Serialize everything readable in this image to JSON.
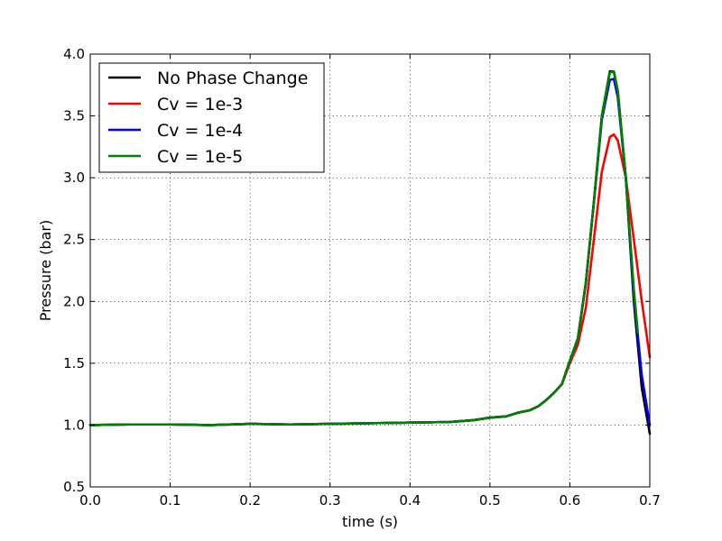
{
  "chart_data": {
    "type": "line",
    "title": "",
    "xlabel": "time (s)",
    "ylabel": "Pressure (bar)",
    "xlim": [
      0.0,
      0.7
    ],
    "ylim": [
      0.5,
      4.0
    ],
    "xticks": [
      "0.0",
      "0.1",
      "0.2",
      "0.3",
      "0.4",
      "0.5",
      "0.6",
      "0.7"
    ],
    "yticks": [
      "0.5",
      "1.0",
      "1.5",
      "2.0",
      "2.5",
      "3.0",
      "3.5",
      "4.0"
    ],
    "grid": true,
    "legend_position": "top-left",
    "series": [
      {
        "name": "No Phase Change",
        "color": "#000000",
        "x": [
          0.0,
          0.05,
          0.1,
          0.15,
          0.2,
          0.25,
          0.3,
          0.35,
          0.4,
          0.45,
          0.48,
          0.5,
          0.52,
          0.535,
          0.55,
          0.56,
          0.57,
          0.58,
          0.59,
          0.6,
          0.61,
          0.62,
          0.63,
          0.64,
          0.65,
          0.655,
          0.66,
          0.67,
          0.68,
          0.69,
          0.7
        ],
        "y": [
          1.0,
          1.005,
          1.005,
          1.0,
          1.01,
          1.005,
          1.01,
          1.015,
          1.02,
          1.025,
          1.04,
          1.06,
          1.07,
          1.1,
          1.12,
          1.15,
          1.2,
          1.26,
          1.33,
          1.52,
          1.7,
          2.15,
          2.8,
          3.5,
          3.86,
          3.86,
          3.7,
          3.0,
          2.0,
          1.3,
          0.93
        ]
      },
      {
        "name": "Cv = 1e-3",
        "color": "#ff0000",
        "x": [
          0.0,
          0.05,
          0.1,
          0.15,
          0.2,
          0.25,
          0.3,
          0.35,
          0.4,
          0.45,
          0.48,
          0.5,
          0.52,
          0.535,
          0.55,
          0.56,
          0.57,
          0.58,
          0.59,
          0.6,
          0.61,
          0.62,
          0.63,
          0.64,
          0.65,
          0.655,
          0.66,
          0.67,
          0.68,
          0.69,
          0.7
        ],
        "y": [
          1.0,
          1.005,
          1.005,
          1.0,
          1.01,
          1.005,
          1.01,
          1.015,
          1.02,
          1.025,
          1.04,
          1.06,
          1.07,
          1.1,
          1.12,
          1.15,
          1.2,
          1.26,
          1.33,
          1.5,
          1.65,
          1.95,
          2.5,
          3.05,
          3.33,
          3.35,
          3.3,
          3.0,
          2.5,
          2.0,
          1.55
        ]
      },
      {
        "name": "Cv = 1e-4",
        "color": "#0000ff",
        "x": [
          0.0,
          0.05,
          0.1,
          0.15,
          0.2,
          0.25,
          0.3,
          0.35,
          0.4,
          0.45,
          0.48,
          0.5,
          0.52,
          0.535,
          0.55,
          0.56,
          0.57,
          0.58,
          0.59,
          0.6,
          0.61,
          0.62,
          0.63,
          0.64,
          0.65,
          0.655,
          0.66,
          0.67,
          0.68,
          0.69,
          0.7
        ],
        "y": [
          1.0,
          1.005,
          1.005,
          1.0,
          1.01,
          1.005,
          1.01,
          1.015,
          1.02,
          1.025,
          1.04,
          1.06,
          1.07,
          1.1,
          1.12,
          1.15,
          1.2,
          1.26,
          1.33,
          1.52,
          1.7,
          2.15,
          2.8,
          3.47,
          3.79,
          3.8,
          3.65,
          3.0,
          2.05,
          1.4,
          1.0
        ]
      },
      {
        "name": "Cv = 1e-5",
        "color": "#008000",
        "x": [
          0.0,
          0.05,
          0.1,
          0.15,
          0.2,
          0.25,
          0.3,
          0.35,
          0.4,
          0.45,
          0.48,
          0.5,
          0.52,
          0.535,
          0.55,
          0.56,
          0.57,
          0.58,
          0.59,
          0.6,
          0.61,
          0.62,
          0.63,
          0.64,
          0.65,
          0.655,
          0.66,
          0.67,
          0.68,
          0.685
        ],
        "y": [
          1.0,
          1.005,
          1.005,
          1.0,
          1.01,
          1.005,
          1.01,
          1.015,
          1.02,
          1.025,
          1.04,
          1.06,
          1.07,
          1.1,
          1.12,
          1.15,
          1.2,
          1.26,
          1.33,
          1.52,
          1.7,
          2.15,
          2.8,
          3.5,
          3.85,
          3.86,
          3.7,
          3.0,
          2.1,
          1.75
        ]
      }
    ]
  }
}
